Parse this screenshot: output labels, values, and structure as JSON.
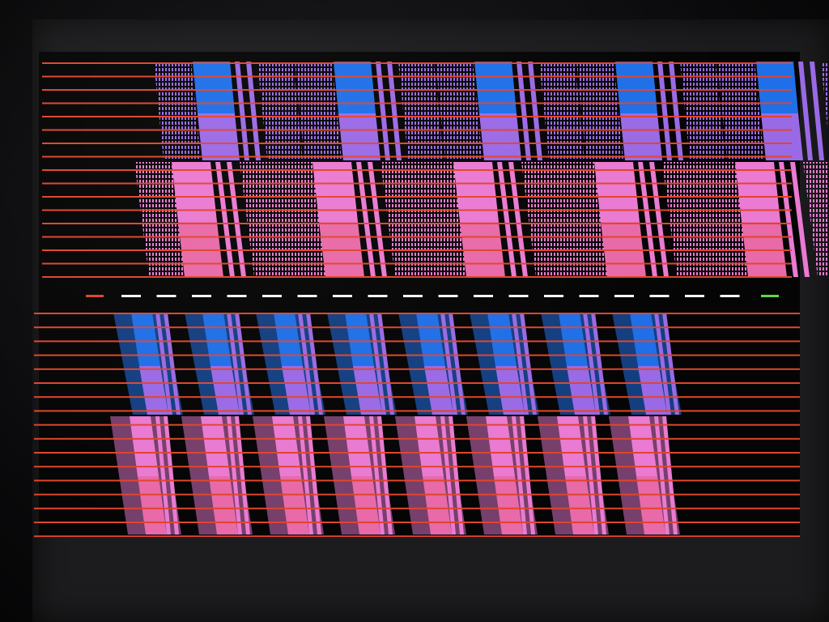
{
  "colors": {
    "background": "#0a0a0c",
    "screen": "#1c1c1e",
    "display_black": "#050505",
    "scanline": "#e0452c",
    "tile_blue": "#1f6fe8",
    "tile_violet": "#9a6ae6",
    "tile_pink": "#ea7ad2",
    "tile_rose": "#e86aa8",
    "dash_white": "#f4f4f4",
    "dash_red": "#e0452c",
    "dash_green": "#62d64a"
  },
  "icons": {
    "monitor": "crt-monitor-icon"
  },
  "description_text": []
}
